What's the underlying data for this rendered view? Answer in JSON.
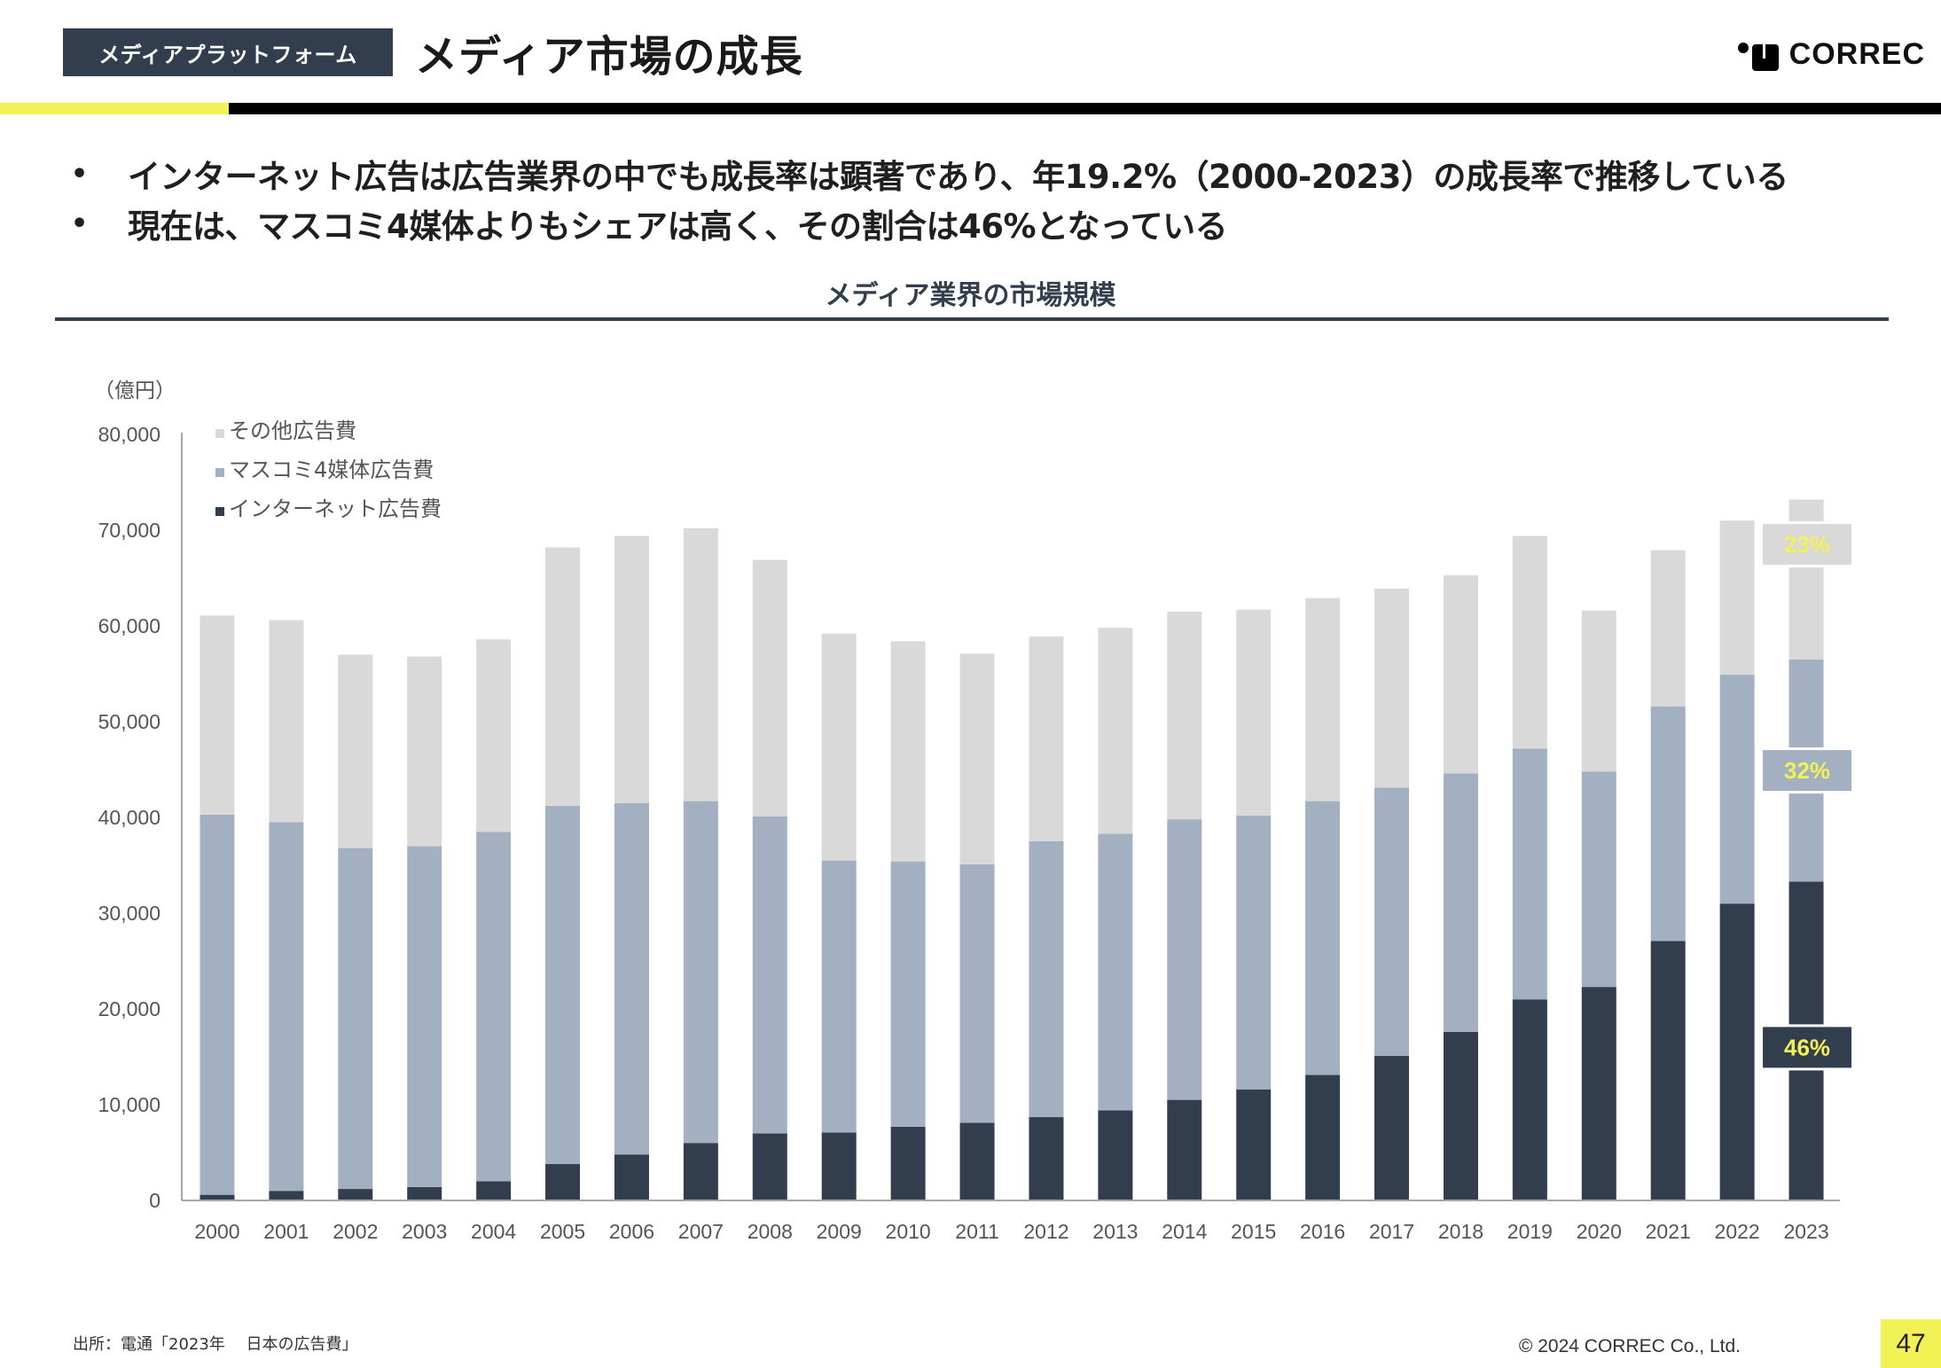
{
  "header": {
    "section_tag": "メディアプラットフォーム",
    "title": "メディア市場の成長",
    "logo_text": "CORREC",
    "accent_color": "#f2f257",
    "dark_color": "#323e4d"
  },
  "bullets": [
    "インターネット広告は広告業界の中でも成長率は顕著であり、年19.2%（2000-2023）の成長率で推移している",
    "現在は、マスコミ4媒体よりもシェアは高く、その割合は46%となっている"
  ],
  "bullet_glyph": "•",
  "chart_data": {
    "type": "bar",
    "stacked": true,
    "title": "メディア業界の市場規模",
    "ylabel": "（億円）",
    "xlabel": "",
    "ylim": [
      0,
      80000
    ],
    "yticks": [
      0,
      10000,
      20000,
      30000,
      40000,
      50000,
      60000,
      70000,
      80000
    ],
    "ytick_labels": [
      "0",
      "10,000",
      "20,000",
      "30,000",
      "40,000",
      "50,000",
      "60,000",
      "70,000",
      "80,000"
    ],
    "grid": false,
    "legend_position": "top-left",
    "categories": [
      "2000",
      "2001",
      "2002",
      "2003",
      "2004",
      "2005",
      "2006",
      "2007",
      "2008",
      "2009",
      "2010",
      "2011",
      "2012",
      "2013",
      "2014",
      "2015",
      "2016",
      "2017",
      "2018",
      "2019",
      "2020",
      "2021",
      "2022",
      "2023"
    ],
    "series": [
      {
        "name": "インターネット広告費",
        "color": "#323e4d",
        "values": [
          590,
          1000,
          1200,
          1400,
          2000,
          3800,
          4800,
          6000,
          7000,
          7100,
          7700,
          8100,
          8700,
          9400,
          10500,
          11600,
          13100,
          15100,
          17600,
          21000,
          22300,
          27100,
          31000,
          33300
        ]
      },
      {
        "name": "マスコミ4媒体広告費",
        "color": "#a3b0c2",
        "values": [
          39700,
          38500,
          35600,
          35600,
          36500,
          37400,
          36700,
          35700,
          33100,
          28400,
          27700,
          27000,
          28800,
          28900,
          29300,
          28600,
          28600,
          28000,
          27000,
          26200,
          22500,
          24500,
          23900,
          23200
        ]
      },
      {
        "name": "その他広告費",
        "color": "#d9d9d9",
        "values": [
          20800,
          21100,
          20200,
          19800,
          20100,
          27000,
          27900,
          28500,
          26800,
          23700,
          23000,
          22000,
          21400,
          21500,
          21700,
          21500,
          21200,
          20800,
          20700,
          22200,
          16800,
          16300,
          16100,
          16700
        ]
      }
    ],
    "legend_order": [
      "その他広告費",
      "マスコミ4媒体広告費",
      "インターネット広告費"
    ],
    "annotations": [
      {
        "category": "2023",
        "series": "その他広告費",
        "label": "23%",
        "box_color": "#d9d9d9"
      },
      {
        "category": "2023",
        "series": "マスコミ4媒体広告費",
        "label": "32%",
        "box_color": "#a3b0c2"
      },
      {
        "category": "2023",
        "series": "インターネット広告費",
        "label": "46%",
        "box_color": "#323e4d"
      }
    ],
    "annotation_text_color": "#f2f257"
  },
  "footer": {
    "source": "出所：電通「2023年　 日本の広告費」",
    "copyright": "© 2024 CORREC Co., Ltd.",
    "page_number": "47"
  }
}
